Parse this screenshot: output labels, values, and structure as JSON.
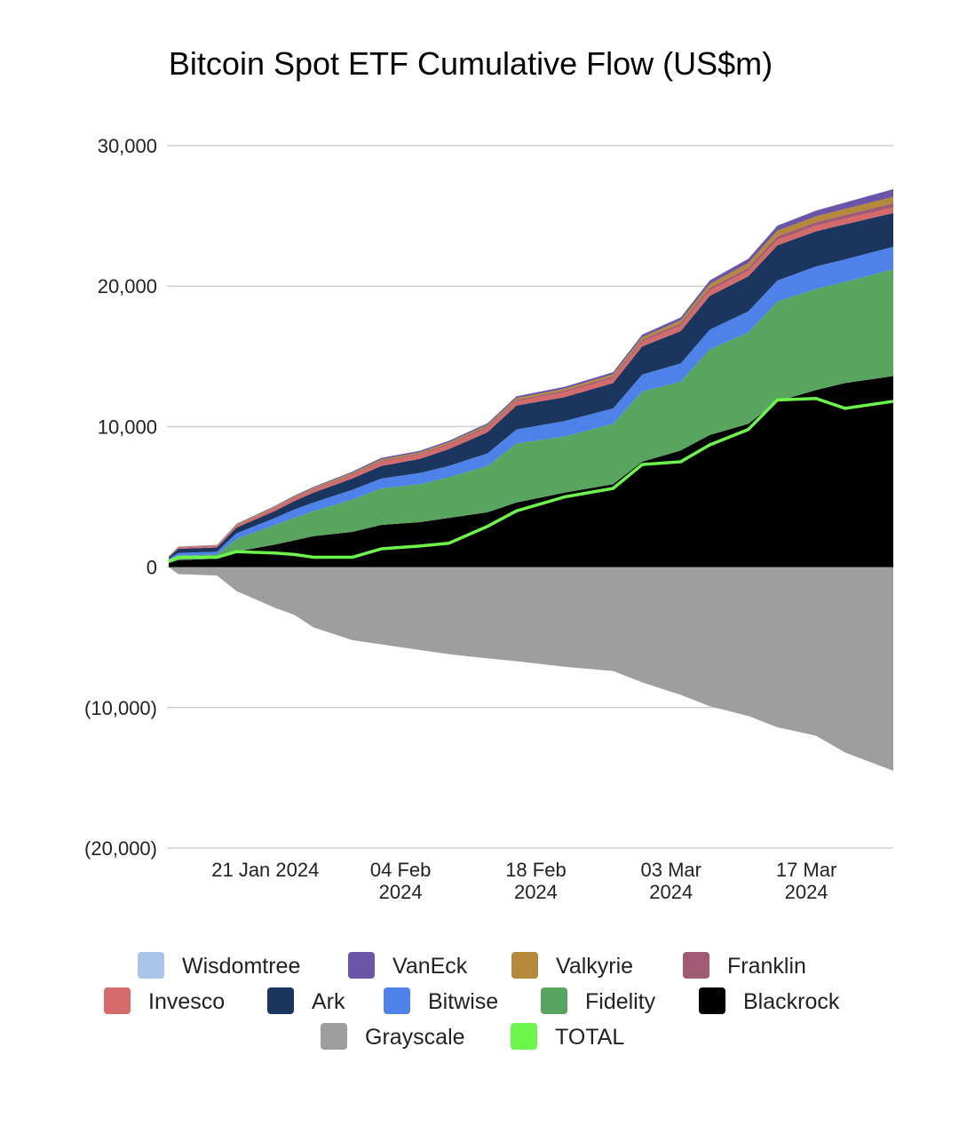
{
  "chart_data": {
    "type": "area",
    "stacked": true,
    "title": "Bitcoin Spot ETF Cumulative Flow (US$m)",
    "xlabel": "",
    "ylabel": "",
    "ylim": [
      -20000,
      30000
    ],
    "y_ticks": [
      {
        "value": 30000,
        "label": "30,000"
      },
      {
        "value": 20000,
        "label": "20,000"
      },
      {
        "value": 10000,
        "label": "10,000"
      },
      {
        "value": 0,
        "label": "0"
      },
      {
        "value": -10000,
        "label": "(10,000)"
      },
      {
        "value": -20000,
        "label": "(20,000)"
      }
    ],
    "x_ticks": [
      {
        "date": "2024-01-21",
        "line1": "21 Jan 2024",
        "line2": ""
      },
      {
        "date": "2024-02-04",
        "line1": "04 Feb",
        "line2": "2024"
      },
      {
        "date": "2024-02-18",
        "line1": "18 Feb",
        "line2": "2024"
      },
      {
        "date": "2024-03-03",
        "line1": "03 Mar",
        "line2": "2024"
      },
      {
        "date": "2024-03-17",
        "line1": "17 Mar",
        "line2": "2024"
      }
    ],
    "xlim": [
      "2024-01-11",
      "2024-03-26"
    ],
    "grid": true,
    "legend_position": "bottom",
    "x": [
      "2024-01-11",
      "2024-01-12",
      "2024-01-16",
      "2024-01-18",
      "2024-01-22",
      "2024-01-24",
      "2024-01-26",
      "2024-01-30",
      "2024-02-02",
      "2024-02-06",
      "2024-02-09",
      "2024-02-13",
      "2024-02-16",
      "2024-02-21",
      "2024-02-26",
      "2024-02-29",
      "2024-03-04",
      "2024-03-07",
      "2024-03-11",
      "2024-03-14",
      "2024-03-18",
      "2024-03-21",
      "2024-03-26"
    ],
    "series": [
      {
        "name": "Blackrock",
        "color": "#000000",
        "values": [
          300,
          500,
          600,
          1100,
          1600,
          1900,
          2200,
          2500,
          3000,
          3200,
          3500,
          3900,
          4600,
          5300,
          5900,
          7500,
          8300,
          9400,
          10200,
          11800,
          12600,
          13100,
          13600
        ]
      },
      {
        "name": "Fidelity",
        "color": "#57a55e",
        "values": [
          200,
          300,
          300,
          900,
          1400,
          1600,
          1800,
          2300,
          2600,
          2700,
          2900,
          3300,
          4200,
          4000,
          4300,
          5000,
          4900,
          6100,
          6500,
          7100,
          7200,
          7200,
          7600
        ]
      },
      {
        "name": "Bitwise",
        "color": "#4f82e8",
        "values": [
          100,
          200,
          200,
          400,
          500,
          600,
          600,
          700,
          700,
          800,
          800,
          900,
          1000,
          1100,
          1100,
          1200,
          1300,
          1400,
          1500,
          1500,
          1600,
          1600,
          1600
        ]
      },
      {
        "name": "Ark",
        "color": "#1a355e",
        "values": [
          100,
          300,
          300,
          400,
          500,
          600,
          700,
          800,
          900,
          1000,
          1200,
          1500,
          1700,
          1700,
          1800,
          2000,
          2300,
          2400,
          2500,
          2500,
          2500,
          2500,
          2400
        ]
      },
      {
        "name": "Invesco",
        "color": "#d46a6a",
        "values": [
          50,
          100,
          100,
          150,
          200,
          200,
          200,
          250,
          300,
          300,
          300,
          300,
          300,
          350,
          350,
          350,
          400,
          400,
          400,
          400,
          400,
          400,
          400
        ]
      },
      {
        "name": "Franklin",
        "color": "#a05a74",
        "values": [
          0,
          20,
          20,
          30,
          40,
          50,
          50,
          60,
          70,
          80,
          80,
          100,
          100,
          110,
          120,
          130,
          150,
          170,
          200,
          250,
          250,
          270,
          300
        ]
      },
      {
        "name": "Valkyrie",
        "color": "#b5893a",
        "values": [
          10,
          20,
          30,
          50,
          70,
          80,
          90,
          100,
          100,
          100,
          110,
          120,
          130,
          140,
          150,
          180,
          220,
          280,
          350,
          400,
          420,
          430,
          450
        ]
      },
      {
        "name": "VanEck",
        "color": "#6a55a8",
        "values": [
          10,
          20,
          30,
          40,
          50,
          60,
          70,
          80,
          100,
          100,
          100,
          120,
          130,
          140,
          150,
          180,
          200,
          250,
          300,
          350,
          400,
          450,
          550
        ]
      },
      {
        "name": "Wisdomtree",
        "color": "#aac5ea",
        "values": [
          0,
          5,
          10,
          10,
          10,
          10,
          10,
          10,
          10,
          10,
          10,
          10,
          10,
          10,
          10,
          20,
          20,
          20,
          20,
          20,
          20,
          20,
          20
        ]
      },
      {
        "name": "Grayscale",
        "color": "#9e9e9e",
        "values": [
          0,
          -500,
          -600,
          -1700,
          -2900,
          -3400,
          -4300,
          -5200,
          -5500,
          -5900,
          -6200,
          -6500,
          -6700,
          -7100,
          -7400,
          -8200,
          -9100,
          -9900,
          -10600,
          -11400,
          -12000,
          -13200,
          -14500
        ]
      },
      {
        "name": "TOTAL",
        "color": "#6cf54a",
        "type": "line",
        "values": [
          400,
          700,
          700,
          1100,
          1000,
          900,
          700,
          700,
          1300,
          1500,
          1700,
          2900,
          4000,
          5000,
          5600,
          7300,
          7500,
          8700,
          9800,
          11900,
          12000,
          11300,
          11800
        ]
      }
    ],
    "legend": [
      {
        "name": "Wisdomtree",
        "color": "#aac5ea"
      },
      {
        "name": "VanEck",
        "color": "#6a55a8"
      },
      {
        "name": "Valkyrie",
        "color": "#b5893a"
      },
      {
        "name": "Franklin",
        "color": "#a05a74"
      },
      {
        "name": "Invesco",
        "color": "#d46a6a"
      },
      {
        "name": "Ark",
        "color": "#1a355e"
      },
      {
        "name": "Bitwise",
        "color": "#4f82e8"
      },
      {
        "name": "Fidelity",
        "color": "#57a55e"
      },
      {
        "name": "Blackrock",
        "color": "#000000"
      },
      {
        "name": "Grayscale",
        "color": "#9e9e9e"
      },
      {
        "name": "TOTAL",
        "color": "#6cf54a"
      }
    ]
  }
}
